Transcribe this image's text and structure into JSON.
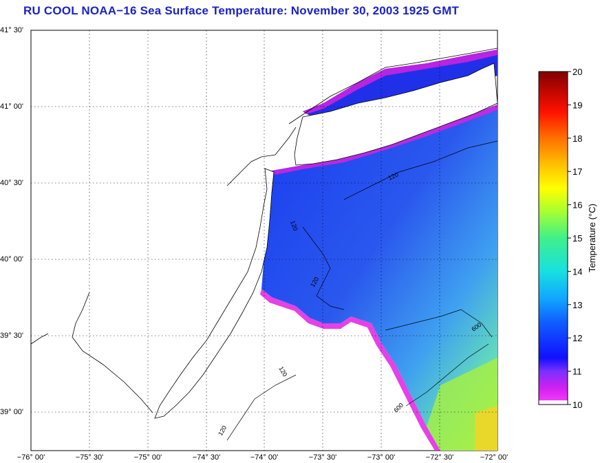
{
  "title": "RU COOL  NOAA−16  Sea Surface Temperature:  November 30, 2003 1925 GMT",
  "map": {
    "lat_ticks": [
      "41° 30'",
      "41° 00'",
      "40° 30'",
      "40° 00'",
      "39° 30'",
      "39° 00'"
    ],
    "lon_ticks": [
      "−76° 00'",
      "−75° 30'",
      "−75° 00'",
      "−74° 30'",
      "−74° 00'",
      "−73° 30'",
      "−73° 00'",
      "−72° 30'",
      "−72° 00'"
    ],
    "lon_range": [
      -76.0,
      -72.0
    ],
    "lat_range": [
      38.75,
      41.5
    ],
    "grid": true,
    "contour_labels": [
      "120",
      "120",
      "120",
      "120",
      "120",
      "600",
      "600"
    ]
  },
  "colorbar": {
    "label": "Temperature (°C)",
    "min": 10,
    "max": 20,
    "ticks": [
      "10",
      "11",
      "12",
      "13",
      "14",
      "15",
      "16",
      "17",
      "18",
      "19",
      "20"
    ],
    "colors": [
      "#ff00ff",
      "#7a3cff",
      "#1020ff",
      "#0a7cff",
      "#18d8f0",
      "#40f07a",
      "#cfff20",
      "#ffd000",
      "#ff6a00",
      "#e00000",
      "#8a0000"
    ]
  }
}
